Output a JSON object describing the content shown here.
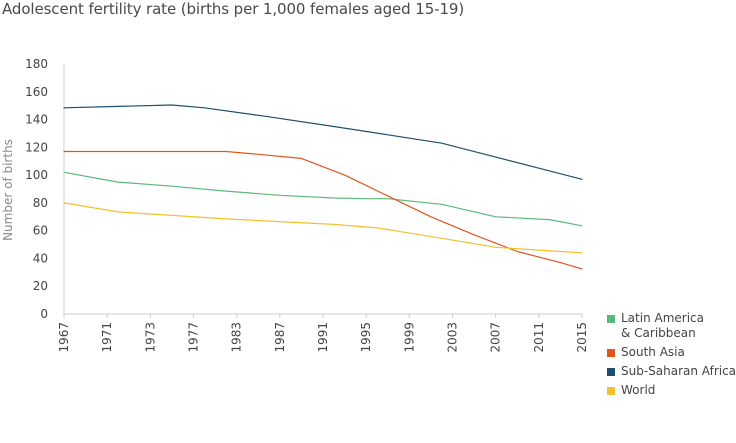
{
  "chart_data": {
    "type": "line",
    "title": "Adolescent fertility rate (births per 1,000 females aged 15-19)",
    "xlabel": "",
    "ylabel": "Number of births",
    "ylim": [
      0,
      180
    ],
    "yticks": [
      0,
      20,
      40,
      60,
      80,
      100,
      120,
      140,
      160,
      180
    ],
    "xlim": [
      1967,
      2015
    ],
    "xtick_labels": [
      "1967",
      "1971",
      "1973",
      "1977",
      "1983",
      "1987",
      "1991",
      "1995",
      "1999",
      "2003",
      "2007",
      "2011",
      "2015"
    ],
    "legend_position": "bottom-right",
    "series": [
      {
        "name": "Latin America\n& Caribbean",
        "color": "#5cb87a",
        "x": [
          1967,
          1972,
          1977,
          1982,
          1987,
          1992,
          1995,
          1997,
          2002,
          2007,
          2012,
          2015
        ],
        "values": [
          102,
          95,
          92,
          88.5,
          85.5,
          83.5,
          83,
          83,
          79,
          70,
          68,
          63.5
        ]
      },
      {
        "name": "South Asia",
        "color": "#e0541e",
        "x": [
          1967,
          1975,
          1982,
          1985,
          1989,
          1993,
          1997,
          2001,
          2005,
          2009,
          2013,
          2015
        ],
        "values": [
          117,
          117,
          117,
          115,
          112,
          100,
          85,
          70,
          57,
          45,
          37,
          32.5
        ]
      },
      {
        "name": "Sub-Saharan Africa",
        "color": "#1f4e6e",
        "x": [
          1967,
          1972,
          1977,
          1980,
          1986,
          1992,
          1997,
          2002,
          2007,
          2012,
          2015
        ],
        "values": [
          148.5,
          149.5,
          150.5,
          148.5,
          142,
          135,
          129,
          123,
          113,
          103,
          97
        ]
      },
      {
        "name": "World",
        "color": "#f2c12e",
        "x": [
          1967,
          1972,
          1977,
          1982,
          1987,
          1992,
          1996,
          2000,
          2004,
          2007,
          2011,
          2015
        ],
        "values": [
          80,
          73.5,
          71,
          68.5,
          66.5,
          64.5,
          62,
          57,
          52,
          48,
          46,
          44
        ]
      }
    ]
  }
}
